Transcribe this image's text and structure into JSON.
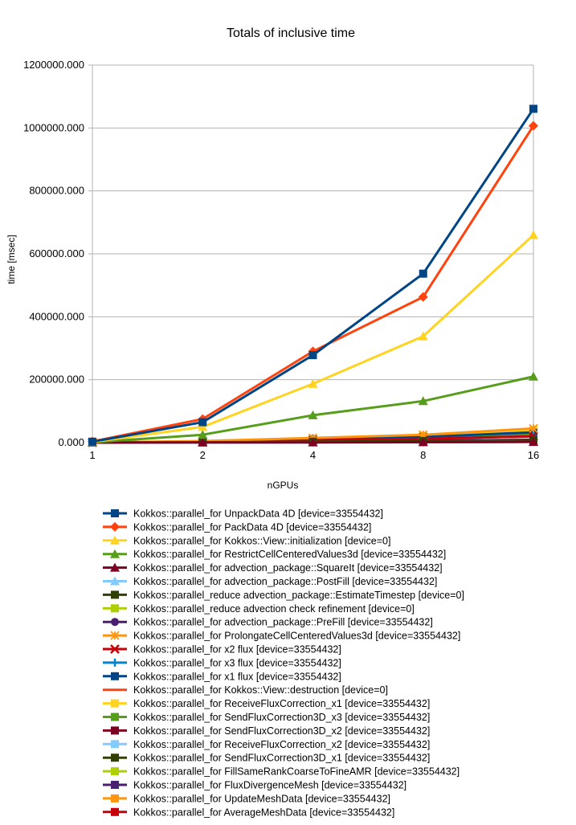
{
  "chart_data": {
    "type": "line",
    "title": "Totals of inclusive time",
    "xlabel": "nGPUs",
    "ylabel": "time [msec]",
    "categories": [
      "1",
      "2",
      "4",
      "8",
      "16"
    ],
    "y_ticks": [
      "0.000",
      "200000.000",
      "400000.000",
      "600000.000",
      "800000.000",
      "1000000.000",
      "1200000.000"
    ],
    "ylim": [
      0,
      1200000
    ],
    "grid": true,
    "legend_position": "bottom",
    "series": [
      {
        "name": "Kokkos::parallel_for UnpackData 4D [device=33554432]",
        "color": "#004586",
        "marker": "square",
        "values": [
          3000,
          65000,
          278000,
          537000,
          1061000
        ]
      },
      {
        "name": "Kokkos::parallel_for PackData 4D [device=33554432]",
        "color": "#ff420e",
        "marker": "diamond",
        "values": [
          3500,
          75000,
          290000,
          463000,
          1007000
        ]
      },
      {
        "name": "Kokkos::parallel_for Kokkos::View::initialization [device=0]",
        "color": "#ffd320",
        "marker": "triangle",
        "values": [
          2000,
          50000,
          187000,
          338000,
          660000
        ]
      },
      {
        "name": "Kokkos::parallel_for RestrictCellCenteredValues3d [device=33554432]",
        "color": "#579d1c",
        "marker": "triangle",
        "values": [
          1000,
          25000,
          87000,
          132000,
          210000
        ]
      },
      {
        "name": "Kokkos::parallel_for advection_package::SquareIt [device=33554432]",
        "color": "#7e0021",
        "marker": "triangle",
        "values": [
          100,
          500,
          1000,
          1500,
          2500
        ]
      },
      {
        "name": "Kokkos::parallel_for advection_package::PostFill [device=33554432]",
        "color": "#83caff",
        "marker": "triangle",
        "values": [
          100,
          400,
          900,
          1400,
          2300
        ]
      },
      {
        "name": "Kokkos::parallel_reduce advection_package::EstimateTimestep [device=0]",
        "color": "#314004",
        "marker": "square",
        "values": [
          200,
          1000,
          3000,
          5000,
          8000
        ]
      },
      {
        "name": "Kokkos::parallel_reduce advection check refinement [device=0]",
        "color": "#aecf00",
        "marker": "square",
        "values": [
          200,
          1000,
          2500,
          4000,
          6000
        ]
      },
      {
        "name": "Kokkos::parallel_for advection_package::PreFill [device=33554432]",
        "color": "#4b1f6f",
        "marker": "circle",
        "values": [
          100,
          500,
          1000,
          1600,
          2600
        ]
      },
      {
        "name": "Kokkos::parallel_for ProlongateCellCenteredValues3d [device=33554432]",
        "color": "#ff950e",
        "marker": "asterisk",
        "values": [
          500,
          5000,
          15000,
          25000,
          45000
        ]
      },
      {
        "name": "Kokkos::parallel_for x2 flux [device=33554432]",
        "color": "#c5000b",
        "marker": "x",
        "values": [
          300,
          3000,
          8000,
          12000,
          20000
        ]
      },
      {
        "name": "Kokkos::parallel_for x3 flux [device=33554432]",
        "color": "#0084d1",
        "marker": "plus",
        "values": [
          300,
          3000,
          8000,
          12000,
          20000
        ]
      },
      {
        "name": "Kokkos::parallel_for x1 flux [device=33554432]",
        "color": "#004586",
        "marker": "square",
        "values": [
          400,
          4000,
          10000,
          18000,
          33000
        ]
      },
      {
        "name": "Kokkos::parallel_for Kokkos::View::destruction [device=0]",
        "color": "#ff420e",
        "marker": "none",
        "values": [
          100,
          500,
          1000,
          1500,
          2500
        ]
      },
      {
        "name": "Kokkos::parallel_for ReceiveFluxCorrection_x1 [device=33554432]",
        "color": "#ffd320",
        "marker": "square",
        "values": [
          400,
          4000,
          12000,
          22000,
          40000
        ]
      },
      {
        "name": "Kokkos::parallel_for SendFluxCorrection3D_x3 [device=33554432]",
        "color": "#579d1c",
        "marker": "square",
        "values": [
          300,
          3000,
          9000,
          15000,
          25000
        ]
      },
      {
        "name": "Kokkos::parallel_for SendFluxCorrection3D_x2 [device=33554432]",
        "color": "#7e0021",
        "marker": "square",
        "values": [
          300,
          3000,
          9000,
          15000,
          25000
        ]
      },
      {
        "name": "Kokkos::parallel_for ReceiveFluxCorrection_x2 [device=33554432]",
        "color": "#83caff",
        "marker": "square",
        "values": [
          300,
          3000,
          9000,
          15000,
          25000
        ]
      },
      {
        "name": "Kokkos::parallel_for SendFluxCorrection3D_x1 [device=33554432]",
        "color": "#314004",
        "marker": "square",
        "values": [
          300,
          3000,
          9000,
          15000,
          25000
        ]
      },
      {
        "name": "Kokkos::parallel_for FillSameRankCoarseToFineAMR [device=33554432]",
        "color": "#aecf00",
        "marker": "square",
        "values": [
          400,
          4000,
          12000,
          20000,
          35000
        ]
      },
      {
        "name": "Kokkos::parallel_for FluxDivergenceMesh [device=33554432]",
        "color": "#4b1f6f",
        "marker": "square",
        "values": [
          300,
          2000,
          4000,
          6000,
          9000
        ]
      },
      {
        "name": "Kokkos::parallel_for UpdateMeshData [device=33554432]",
        "color": "#ff950e",
        "marker": "square",
        "values": [
          300,
          2000,
          4000,
          6000,
          9000
        ]
      },
      {
        "name": "Kokkos::parallel_for AverageMeshData [device=33554432]",
        "color": "#c5000b",
        "marker": "square",
        "values": [
          200,
          1000,
          1500,
          2000,
          2500
        ]
      }
    ]
  }
}
